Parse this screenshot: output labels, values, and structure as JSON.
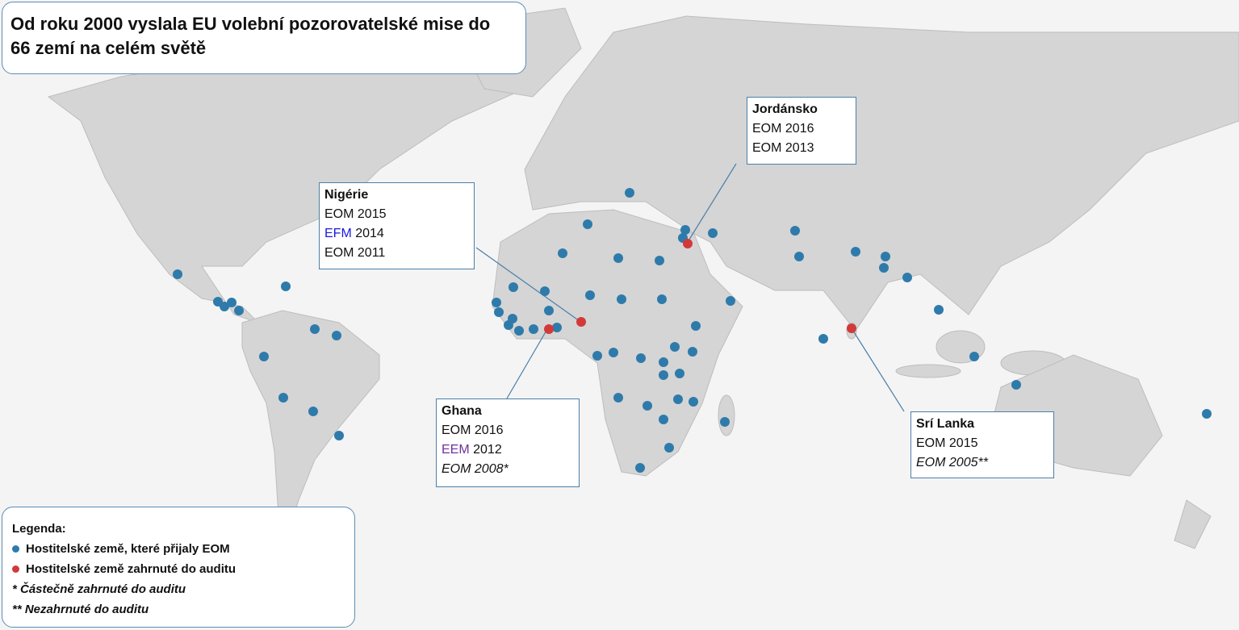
{
  "title": "Od roku 2000 vyslala EU volební pozorovatelské mise do 66 zemí na celém světě",
  "callouts": [
    {
      "country": "Jordánsko",
      "lines": [
        {
          "code": "EOM",
          "year": "2016"
        },
        {
          "code": "EOM",
          "year": "2013"
        }
      ]
    },
    {
      "country": "Nigérie",
      "lines": [
        {
          "code": "EOM",
          "year": "2015"
        },
        {
          "code": "EFM",
          "year": "2014"
        },
        {
          "code": "EOM",
          "year": "2011"
        }
      ]
    },
    {
      "country": "Ghana",
      "lines": [
        {
          "code": "EOM",
          "year": "2016"
        },
        {
          "code": "EEM",
          "year": "2012"
        },
        {
          "code": "EOM",
          "year": "2008*"
        }
      ]
    },
    {
      "country": "Srí Lanka",
      "lines": [
        {
          "code": "EOM",
          "year": "2015"
        },
        {
          "code": "EOM",
          "year": "2005**"
        }
      ]
    }
  ],
  "legend": {
    "title": "Legenda:",
    "items": [
      "Hostitelské země, které přijaly EOM",
      "Hostitelské země zahrnuté do auditu"
    ],
    "notes": [
      "* Částečně zahrnuté do auditu",
      "** Nezahrnuté do auditu"
    ]
  }
}
